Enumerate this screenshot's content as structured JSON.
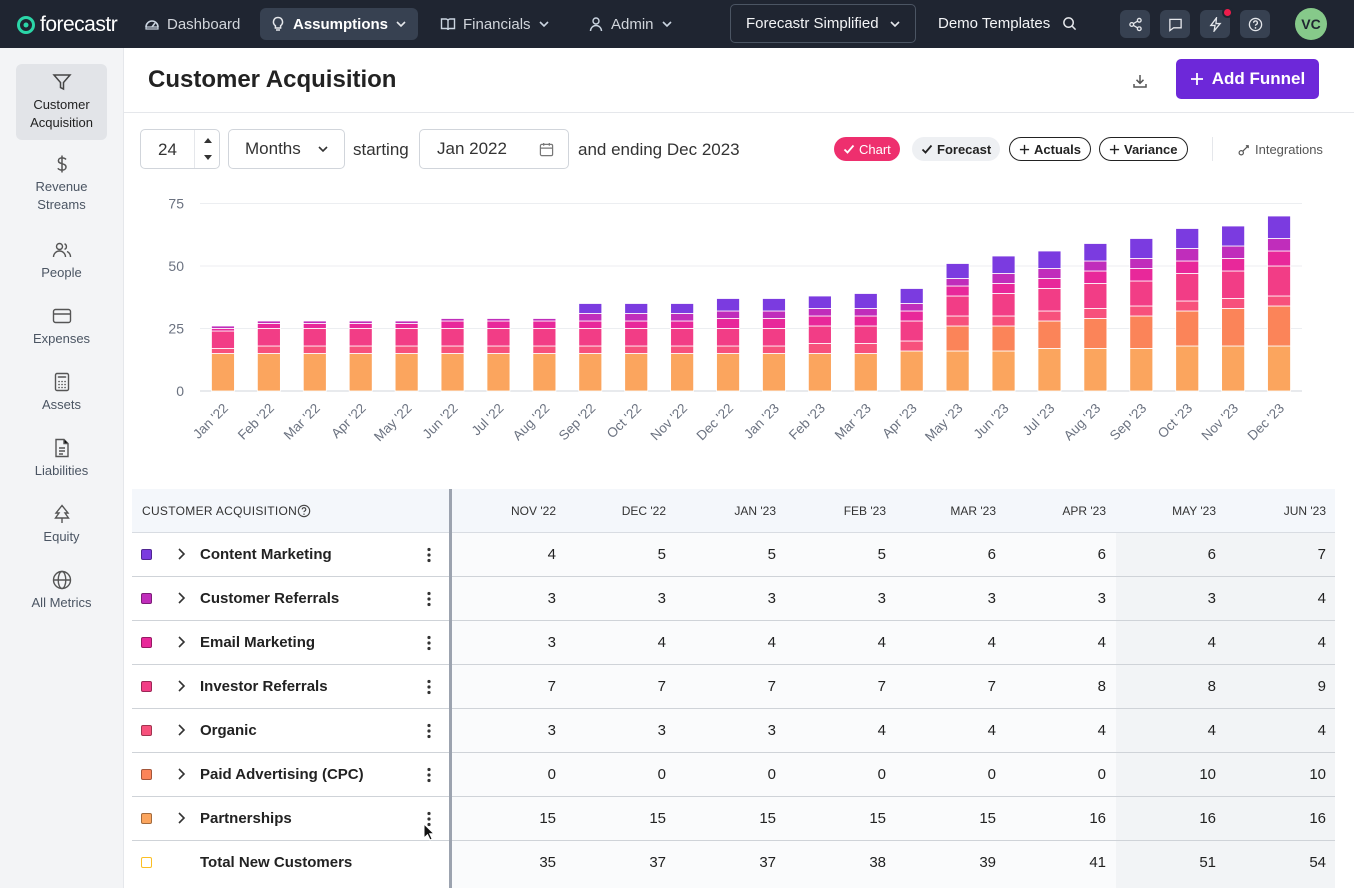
{
  "topbar": {
    "logo": "forecastr",
    "nav": [
      {
        "label": "Dashboard",
        "icon": "dashboard-gauge-icon"
      },
      {
        "label": "Assumptions",
        "icon": "lightbulb-icon"
      },
      {
        "label": "Financials",
        "icon": "book-icon"
      },
      {
        "label": "Admin",
        "icon": "user-icon"
      }
    ],
    "company": "Forecastr Simplified",
    "search_value": "Demo Templates",
    "avatar": "VC"
  },
  "sidebar": {
    "items": [
      {
        "label": "Customer Acquisition",
        "icon": "funnel-icon"
      },
      {
        "label": "Revenue Streams",
        "icon": "dollar-icon"
      },
      {
        "label": "People",
        "icon": "people-icon"
      },
      {
        "label": "Expenses",
        "icon": "credit-card-icon"
      },
      {
        "label": "Assets",
        "icon": "calculator-icon"
      },
      {
        "label": "Liabilities",
        "icon": "document-icon"
      },
      {
        "label": "Equity",
        "icon": "tree-icon"
      },
      {
        "label": "All Metrics",
        "icon": "globe-icon"
      }
    ]
  },
  "page": {
    "title": "Customer Acquisition",
    "add_button": "Add Funnel"
  },
  "controls": {
    "period_count": "24",
    "period_unit": "Months",
    "starting_label": "starting",
    "start_date": "Jan 2022",
    "ending_label": "and ending Dec 2023",
    "toggles": [
      {
        "label": "Chart",
        "state": "on"
      },
      {
        "label": "Forecast",
        "state": "checked"
      },
      {
        "label": "Actuals",
        "state": "off"
      },
      {
        "label": "Variance",
        "state": "off"
      }
    ],
    "integrations": "Integrations"
  },
  "chart_data": {
    "type": "bar",
    "stacked": true,
    "categories": [
      "Jan '22",
      "Feb '22",
      "Mar '22",
      "Apr '22",
      "May '22",
      "Jun '22",
      "Jul '22",
      "Aug '22",
      "Sep '22",
      "Oct '22",
      "Nov '22",
      "Dec '22",
      "Jan '23",
      "Feb '23",
      "Mar '23",
      "Apr '23",
      "May '23",
      "Jun '23",
      "Jul '23",
      "Aug '23",
      "Sep '23",
      "Oct '23",
      "Nov '23",
      "Dec '23"
    ],
    "ylim": [
      0,
      75
    ],
    "yticks": [
      0,
      25,
      50,
      75
    ],
    "series": [
      {
        "name": "Partnerships",
        "color": "#fba55e",
        "values": [
          15,
          15,
          15,
          15,
          15,
          15,
          15,
          15,
          15,
          15,
          15,
          15,
          15,
          15,
          15,
          16,
          16,
          16,
          17,
          17,
          17,
          18,
          18,
          18
        ]
      },
      {
        "name": "Paid Advertising (CPC)",
        "color": "#fb8459",
        "values": [
          0,
          0,
          0,
          0,
          0,
          0,
          0,
          0,
          0,
          0,
          0,
          0,
          0,
          0,
          0,
          0,
          10,
          10,
          11,
          12,
          13,
          14,
          15,
          16
        ]
      },
      {
        "name": "Organic",
        "color": "#f7517c",
        "values": [
          2,
          3,
          3,
          3,
          3,
          3,
          3,
          3,
          3,
          3,
          3,
          3,
          3,
          4,
          4,
          4,
          4,
          4,
          4,
          4,
          4,
          4,
          4,
          4
        ]
      },
      {
        "name": "Investor Referrals",
        "color": "#f23d86",
        "values": [
          7,
          7,
          7,
          7,
          7,
          7,
          7,
          7,
          7,
          7,
          7,
          7,
          7,
          7,
          7,
          8,
          8,
          9,
          9,
          10,
          10,
          11,
          11,
          12
        ]
      },
      {
        "name": "Email Marketing",
        "color": "#e8289a",
        "values": [
          1,
          2,
          2,
          2,
          2,
          3,
          3,
          3,
          3,
          3,
          3,
          4,
          4,
          4,
          4,
          4,
          4,
          4,
          4,
          5,
          5,
          5,
          5,
          6
        ]
      },
      {
        "name": "Customer Referrals",
        "color": "#c02dbb",
        "values": [
          1,
          1,
          1,
          1,
          1,
          1,
          1,
          1,
          3,
          3,
          3,
          3,
          3,
          3,
          3,
          3,
          3,
          4,
          4,
          4,
          4,
          5,
          5,
          5
        ]
      },
      {
        "name": "Content Marketing",
        "color": "#7b3be0",
        "values": [
          0,
          0,
          0,
          0,
          0,
          0,
          0,
          0,
          4,
          4,
          4,
          5,
          5,
          5,
          6,
          6,
          6,
          7,
          7,
          7,
          8,
          8,
          8,
          9
        ]
      }
    ]
  },
  "table": {
    "title": "CUSTOMER ACQUISITION",
    "columns": [
      "NOV '22",
      "DEC '22",
      "JAN '23",
      "FEB '23",
      "MAR '23",
      "APR '23",
      "MAY '23",
      "JUN '23"
    ],
    "rows": [
      {
        "label": "Content Marketing",
        "color": "#7b3be0",
        "values": [
          "4",
          "5",
          "5",
          "5",
          "6",
          "6",
          "6",
          "7"
        ]
      },
      {
        "label": "Customer Referrals",
        "color": "#c02dbb",
        "values": [
          "3",
          "3",
          "3",
          "3",
          "3",
          "3",
          "3",
          "4"
        ]
      },
      {
        "label": "Email Marketing",
        "color": "#e8289a",
        "values": [
          "3",
          "4",
          "4",
          "4",
          "4",
          "4",
          "4",
          "4"
        ]
      },
      {
        "label": "Investor Referrals",
        "color": "#f23d86",
        "values": [
          "7",
          "7",
          "7",
          "7",
          "7",
          "8",
          "8",
          "9"
        ]
      },
      {
        "label": "Organic",
        "color": "#f7517c",
        "values": [
          "3",
          "3",
          "3",
          "4",
          "4",
          "4",
          "4",
          "4"
        ]
      },
      {
        "label": "Paid Advertising (CPC)",
        "color": "#fb8459",
        "values": [
          "0",
          "0",
          "0",
          "0",
          "0",
          "0",
          "10",
          "10"
        ]
      },
      {
        "label": "Partnerships",
        "color": "#fba55e",
        "values": [
          "15",
          "15",
          "15",
          "15",
          "15",
          "16",
          "16",
          "16"
        ]
      }
    ],
    "total": {
      "label": "Total New Customers",
      "values": [
        "35",
        "37",
        "37",
        "38",
        "39",
        "41",
        "51",
        "54"
      ]
    }
  }
}
